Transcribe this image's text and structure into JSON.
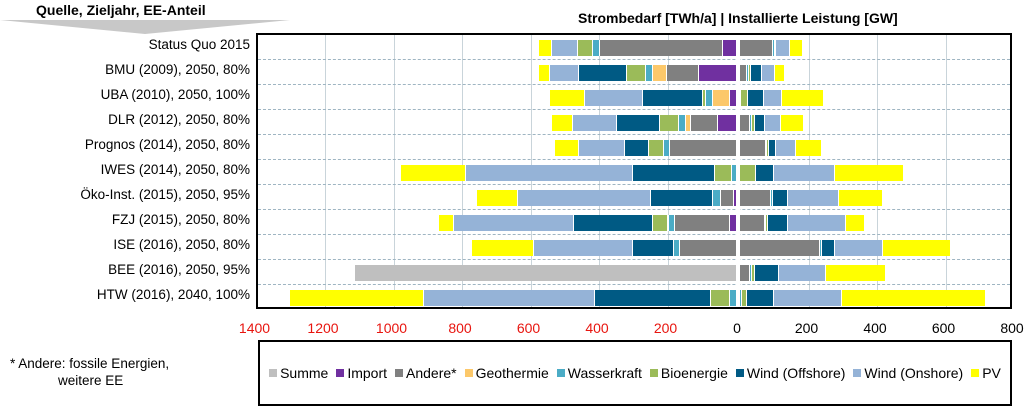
{
  "chart_data": {
    "type": "bar",
    "orientation": "horizontal-stacked-diverging",
    "header_left": "Quelle, Zieljahr, EE-Anteil",
    "title": "Strombedarf [TWh/a]  |  Installierte Leistung [GW]",
    "left_axis": {
      "label": "Strombedarf [TWh/a]",
      "range": [
        1400,
        0
      ],
      "ticks": [
        "1400",
        "1200",
        "1000",
        "800",
        "600",
        "400",
        "200",
        "0"
      ],
      "tick_color": "#e8150f"
    },
    "right_axis": {
      "label": "Installierte Leistung [GW]",
      "range": [
        0,
        800
      ],
      "ticks": [
        "200",
        "400",
        "600",
        "800"
      ],
      "tick_color": "#000000"
    },
    "legend_position": "bottom",
    "series": [
      {
        "name": "Summe",
        "color": "#bfbfbf"
      },
      {
        "name": "Import",
        "color": "#7030a0"
      },
      {
        "name": "Andere*",
        "color": "#808080"
      },
      {
        "name": "Geothermie",
        "color": "#fcc86a"
      },
      {
        "name": "Wasserkraft",
        "color": "#4bacc6"
      },
      {
        "name": "Bioenergie",
        "color": "#9bbb59"
      },
      {
        "name": "Wind (Offshore)",
        "color": "#005a84"
      },
      {
        "name": "Wind (Onshore)",
        "color": "#95b3d7"
      },
      {
        "name": "PV",
        "color": "#ffff00"
      }
    ],
    "categories": [
      "Status Quo 2015",
      "BMU (2009), 2050, 80%",
      "UBA (2010), 2050, 100%",
      "DLR (2012), 2050, 80%",
      "Prognos (2014), 2050, 80%",
      "IWES (2014), 2050, 80%",
      "Öko-Inst. (2015), 2050, 95%",
      "FZJ (2015), 2050, 80%",
      "ISE (2016), 2050, 80%",
      "BEE (2016), 2050, 95%",
      "HTW (2016), 2040, 100%"
    ],
    "strombedarf_twh": [
      {
        "Summe": 0,
        "Import": 40,
        "Andere*": 360,
        "Geothermie": 0,
        "Wasserkraft": 20,
        "Bioenergie": 45,
        "Wind (Offshore)": 0,
        "Wind (Onshore)": 75,
        "PV": 38
      },
      {
        "Summe": 0,
        "Import": 110,
        "Andere*": 95,
        "Geothermie": 40,
        "Wasserkraft": 22,
        "Bioenergie": 55,
        "Wind (Offshore)": 140,
        "Wind (Onshore)": 85,
        "PV": 30
      },
      {
        "Summe": 0,
        "Import": 20,
        "Andere*": 0,
        "Geothermie": 50,
        "Wasserkraft": 20,
        "Bioenergie": 10,
        "Wind (Offshore)": 175,
        "Wind (Onshore)": 170,
        "PV": 100
      },
      {
        "Summe": 0,
        "Import": 55,
        "Andere*": 80,
        "Geothermie": 15,
        "Wasserkraft": 20,
        "Bioenergie": 55,
        "Wind (Offshore)": 125,
        "Wind (Onshore)": 130,
        "PV": 60
      },
      {
        "Summe": 0,
        "Import": 0,
        "Andere*": 195,
        "Geothermie": 0,
        "Wasserkraft": 17,
        "Bioenergie": 45,
        "Wind (Offshore)": 70,
        "Wind (Onshore)": 135,
        "PV": 70
      },
      {
        "Summe": 0,
        "Import": 0,
        "Andere*": 0,
        "Geothermie": 0,
        "Wasserkraft": 15,
        "Bioenergie": 50,
        "Wind (Offshore)": 240,
        "Wind (Onshore)": 485,
        "PV": 190
      },
      {
        "Summe": 0,
        "Import": 8,
        "Andere*": 40,
        "Geothermie": 0,
        "Wasserkraft": 22,
        "Bioenergie": 0,
        "Wind (Offshore)": 180,
        "Wind (Onshore)": 390,
        "PV": 120
      },
      {
        "Summe": 0,
        "Import": 20,
        "Andere*": 160,
        "Geothermie": 0,
        "Wasserkraft": 20,
        "Bioenergie": 45,
        "Wind (Offshore)": 230,
        "Wind (Onshore)": 350,
        "PV": 45
      },
      {
        "Summe": 0,
        "Import": 0,
        "Andere*": 165,
        "Geothermie": 0,
        "Wasserkraft": 18,
        "Bioenergie": 0,
        "Wind (Offshore)": 120,
        "Wind (Onshore)": 290,
        "PV": 180
      },
      {
        "Summe": 1115,
        "Import": 0,
        "Andere*": 0,
        "Geothermie": 0,
        "Wasserkraft": 0,
        "Bioenergie": 0,
        "Wind (Offshore)": 0,
        "Wind (Onshore)": 0,
        "PV": 0
      },
      {
        "Summe": 0,
        "Import": 0,
        "Andere*": 0,
        "Geothermie": 0,
        "Wasserkraft": 20,
        "Bioenergie": 55,
        "Wind (Offshore)": 340,
        "Wind (Onshore)": 500,
        "PV": 390
      }
    ],
    "leistung_gw": [
      {
        "Andere*": 97,
        "Wasserkraft": 4,
        "Bioenergie": 4,
        "Wind (Offshore)": 0,
        "Wind (Onshore)": 40,
        "PV": 38
      },
      {
        "Andere*": 20,
        "Wasserkraft": 5,
        "Bioenergie": 6,
        "Wind (Offshore)": 34,
        "Wind (Onshore)": 36,
        "PV": 30
      },
      {
        "Andere*": 0,
        "Wasserkraft": 4,
        "Bioenergie": 20,
        "Wind (Offshore)": 45,
        "Wind (Onshore)": 55,
        "PV": 120
      },
      {
        "Andere*": 30,
        "Wasserkraft": 5,
        "Bioenergie": 8,
        "Wind (Offshore)": 30,
        "Wind (Onshore)": 48,
        "PV": 65
      },
      {
        "Andere*": 75,
        "Wasserkraft": 4,
        "Bioenergie": 5,
        "Wind (Offshore)": 20,
        "Wind (Onshore)": 60,
        "PV": 75
      },
      {
        "Andere*": 0,
        "Wasserkraft": 0,
        "Bioenergie": 48,
        "Wind (Offshore)": 50,
        "Wind (Onshore)": 180,
        "PV": 200
      },
      {
        "Andere*": 90,
        "Wasserkraft": 5,
        "Bioenergie": 0,
        "Wind (Offshore)": 45,
        "Wind (Onshore)": 150,
        "PV": 128
      },
      {
        "Andere*": 73,
        "Wasserkraft": 4,
        "Bioenergie": 5,
        "Wind (Offshore)": 58,
        "Wind (Onshore)": 170,
        "PV": 55
      },
      {
        "Andere*": 235,
        "Wasserkraft": 4,
        "Bioenergie": 0,
        "Wind (Offshore)": 38,
        "Wind (Onshore)": 140,
        "PV": 200
      },
      {
        "Andere*": 30,
        "Wasserkraft": 5,
        "Bioenergie": 8,
        "Wind (Offshore)": 70,
        "Wind (Onshore)": 138,
        "PV": 175
      },
      {
        "Andere*": 0,
        "Wasserkraft": 5,
        "Bioenergie": 16,
        "Wind (Offshore)": 77,
        "Wind (Onshore)": 200,
        "PV": 420
      }
    ]
  },
  "footnote_line1": "* Andere: fossile Energien,",
  "footnote_line2": "weitere EE"
}
